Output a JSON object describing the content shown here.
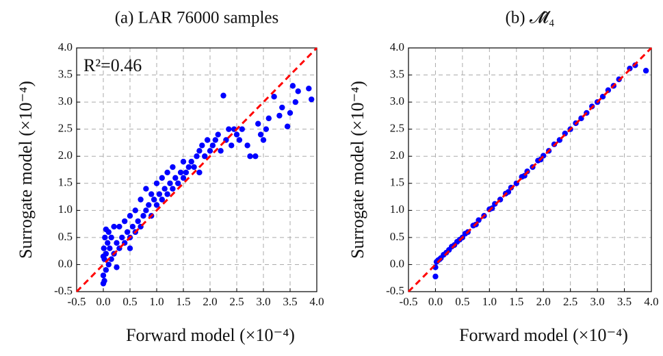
{
  "chart_data": [
    {
      "type": "scatter",
      "title": "(a) LAR 76000 samples",
      "xlabel": "Forward model (×10⁻⁴)",
      "ylabel": "Surrogate model (×10⁻⁴)",
      "annotation": "R²=0.46",
      "color": "#0000ff",
      "identity_line_color": "#ff0000",
      "grid": true,
      "xlim": [
        -0.5,
        4.0
      ],
      "ylim": [
        -0.5,
        4.0
      ],
      "xticks": [
        -0.5,
        {
          "value": 0,
          "label": "0.0"
        },
        0.5,
        {
          "value": 1,
          "label": "1.0"
        },
        1.5,
        {
          "value": 2,
          "label": "2.0"
        },
        2.5,
        {
          "value": 3,
          "label": "3.0"
        },
        3.5,
        {
          "value": 4,
          "label": "4.0"
        }
      ],
      "yticks": [
        -0.5,
        {
          "value": 0,
          "label": "0.0"
        },
        0.5,
        {
          "value": 1,
          "label": "1.0"
        },
        1.5,
        {
          "value": 2,
          "label": "2.0"
        },
        2.5,
        {
          "value": 3,
          "label": "3.0"
        },
        3.5,
        {
          "value": 4,
          "label": "4.0"
        }
      ],
      "x": [
        0,
        0,
        0.02,
        0.01,
        0.03,
        0.05,
        0.05,
        0.08,
        0.1,
        0.1,
        0.12,
        0.15,
        0.15,
        0.2,
        0.2,
        0.25,
        0.3,
        0.3,
        0.35,
        0.4,
        0.4,
        0.45,
        0.5,
        0.5,
        0.55,
        0.6,
        0.6,
        0.65,
        0.7,
        0.7,
        0.75,
        0.8,
        0.8,
        0.85,
        0.9,
        0.9,
        0.95,
        1.0,
        1.0,
        1.05,
        1.1,
        1.1,
        1.15,
        1.2,
        1.2,
        1.25,
        1.3,
        1.3,
        1.35,
        1.4,
        1.45,
        1.5,
        1.5,
        1.55,
        1.6,
        1.65,
        1.7,
        1.75,
        1.8,
        1.8,
        1.85,
        1.9,
        1.95,
        2.0,
        2.05,
        2.1,
        2.15,
        2.2,
        2.25,
        2.3,
        2.35,
        2.4,
        2.45,
        2.5,
        2.55,
        2.6,
        2.7,
        2.75,
        2.85,
        2.9,
        2.95,
        3.0,
        3.05,
        3.1,
        3.2,
        3.3,
        3.35,
        3.45,
        3.5,
        3.55,
        3.6,
        3.65,
        3.85,
        3.9,
        0.0,
        0.02,
        0.25,
        0.5,
        0.05
      ],
      "y": [
        -0.35,
        -0.2,
        0.1,
        0.3,
        0.5,
        -0.1,
        0.2,
        0.4,
        0.0,
        0.6,
        0.3,
        0.1,
        0.5,
        0.2,
        0.7,
        0.4,
        0.3,
        0.7,
        0.5,
        0.4,
        0.8,
        0.6,
        0.5,
        0.9,
        0.7,
        0.6,
        1.0,
        0.8,
        0.7,
        1.2,
        0.9,
        1.0,
        1.4,
        1.1,
        0.9,
        1.3,
        1.2,
        1.1,
        1.5,
        1.3,
        1.2,
        1.6,
        1.4,
        1.3,
        1.7,
        1.5,
        1.4,
        1.8,
        1.6,
        1.5,
        1.7,
        1.6,
        1.9,
        1.7,
        1.8,
        1.9,
        1.8,
        2.0,
        2.1,
        1.7,
        2.2,
        2.0,
        2.3,
        2.1,
        2.2,
        2.3,
        2.4,
        2.1,
        3.12,
        2.3,
        2.5,
        2.2,
        2.5,
        2.4,
        2.3,
        2.5,
        2.2,
        2.0,
        2.0,
        2.6,
        2.4,
        2.3,
        2.5,
        2.7,
        3.1,
        2.75,
        2.9,
        2.55,
        2.8,
        3.3,
        3.0,
        3.2,
        3.25,
        3.05,
        0.15,
        -0.3,
        -0.05,
        0.3,
        0.65
      ]
    },
    {
      "type": "scatter",
      "title": "(b) 𝓜̂₄",
      "xlabel": "Forward model (×10⁻⁴)",
      "ylabel": "Surrogate model (×10⁻⁴)",
      "color": "#0000ff",
      "identity_line_color": "#ff0000",
      "grid": true,
      "xlim": [
        -0.5,
        4.0
      ],
      "ylim": [
        -0.5,
        4.0
      ],
      "xticks": [
        -0.5,
        {
          "value": 0,
          "label": "0.0"
        },
        0.5,
        {
          "value": 1,
          "label": "1.0"
        },
        1.5,
        {
          "value": 2,
          "label": "2.0"
        },
        2.5,
        {
          "value": 3,
          "label": "3.0"
        },
        3.5,
        {
          "value": 4,
          "label": "4.0"
        }
      ],
      "yticks": [
        -0.5,
        {
          "value": 0,
          "label": "0.0"
        },
        0.5,
        {
          "value": 1,
          "label": "1.0"
        },
        1.5,
        {
          "value": 2,
          "label": "2.0"
        },
        2.5,
        {
          "value": 3,
          "label": "3.0"
        },
        3.5,
        {
          "value": 4,
          "label": "4.0"
        }
      ],
      "x": [
        0,
        0,
        0.02,
        0.05,
        0.08,
        0.1,
        0.15,
        0.2,
        0.25,
        0.3,
        0.35,
        0.4,
        0.45,
        0.5,
        0.55,
        0.6,
        0.7,
        0.75,
        0.8,
        0.9,
        1.0,
        1.05,
        1.1,
        1.2,
        1.3,
        1.35,
        1.4,
        1.5,
        1.6,
        1.65,
        1.7,
        1.8,
        1.9,
        1.95,
        2.0,
        2.1,
        2.2,
        2.3,
        2.4,
        2.5,
        2.6,
        2.7,
        2.8,
        2.9,
        3.0,
        3.1,
        3.2,
        3.3,
        3.4,
        3.6,
        3.7,
        3.9
      ],
      "y": [
        -0.22,
        -0.05,
        0.05,
        0.08,
        0.1,
        0.12,
        0.18,
        0.22,
        0.27,
        0.33,
        0.36,
        0.42,
        0.46,
        0.5,
        0.57,
        0.6,
        0.72,
        0.74,
        0.82,
        0.9,
        1.02,
        1.04,
        1.12,
        1.2,
        1.31,
        1.34,
        1.42,
        1.5,
        1.62,
        1.64,
        1.72,
        1.8,
        1.92,
        1.94,
        2.01,
        2.1,
        2.22,
        2.3,
        2.42,
        2.5,
        2.61,
        2.7,
        2.8,
        2.92,
        3.0,
        3.1,
        3.22,
        3.3,
        3.42,
        3.62,
        3.68,
        3.58
      ]
    }
  ]
}
